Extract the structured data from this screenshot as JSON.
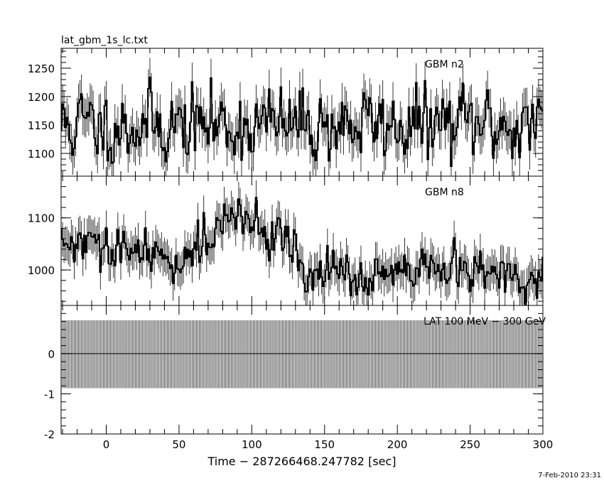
{
  "figure": {
    "title": "lat_gbm_1s_lc.txt",
    "timestamp": "7-Feb-2010 23:31",
    "xlabel": "Time − 287266468.247782 [sec]"
  },
  "chart_data": [
    {
      "type": "line",
      "panel": "top",
      "label": "GBM n2",
      "x_range": [
        -31,
        300
      ],
      "ylim": [
        1060,
        1285
      ],
      "y_ticks": [
        1100,
        1150,
        1200,
        1250
      ],
      "x_ticks": [
        0,
        50,
        100,
        150,
        200,
        250,
        300
      ],
      "mean_y": 1150,
      "std_y": 33,
      "error": 34,
      "seed": 11
    },
    {
      "type": "line",
      "panel": "middle",
      "label": "GBM n8",
      "x_range": [
        -31,
        300
      ],
      "ylim": [
        932,
        1180
      ],
      "y_ticks": [
        1000,
        1100
      ],
      "x_ticks": [
        0,
        50,
        100,
        150,
        200,
        250,
        300
      ],
      "baseline_y": 1000,
      "mean_y_note_points": [
        [
          -31,
          1050
        ],
        [
          20,
          1030
        ],
        [
          50,
          1020
        ],
        [
          80,
          1090
        ],
        [
          100,
          1090
        ],
        [
          120,
          1070
        ],
        [
          140,
          990
        ],
        [
          200,
          985
        ],
        [
          230,
          1000
        ],
        [
          260,
          995
        ],
        [
          300,
          970
        ]
      ],
      "std_y": 22,
      "error": 33,
      "seed": 29
    },
    {
      "type": "line",
      "panel": "bottom",
      "label": "LAT 100 MeV − 300 GeV",
      "x_range": [
        -31,
        300
      ],
      "ylim": [
        -2,
        1.2
      ],
      "y_ticks": [
        -2,
        -1,
        0
      ],
      "x_ticks": [
        0,
        50,
        100,
        150,
        200,
        250,
        300
      ],
      "x_tick_labels": [
        "0",
        "50",
        "100",
        "150",
        "200",
        "250",
        "300"
      ],
      "value": 0,
      "error_upper": 0.83,
      "error_lower": -0.86
    }
  ]
}
